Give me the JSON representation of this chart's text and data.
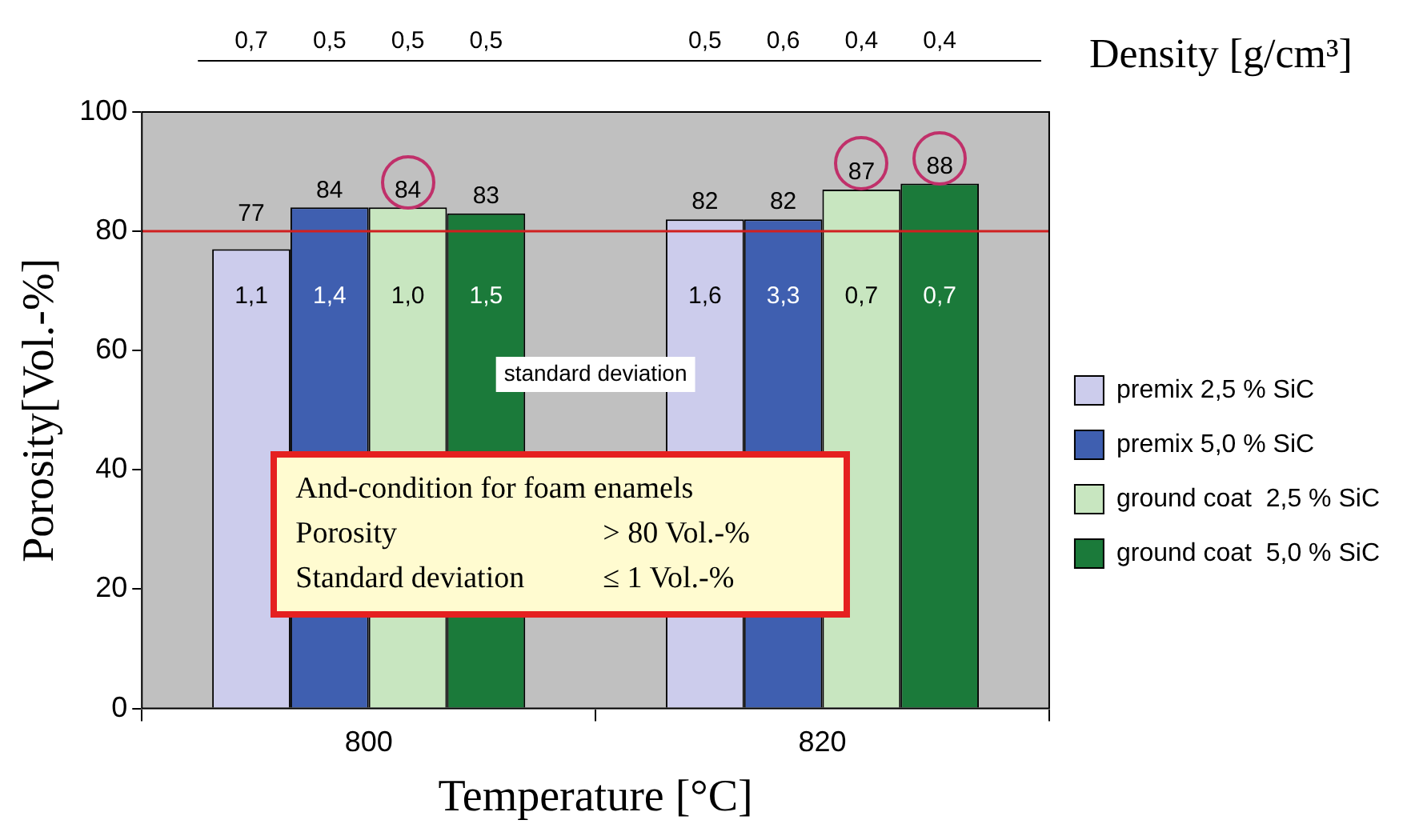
{
  "chart_data": {
    "type": "bar",
    "xlabel": "Temperature [°C]",
    "ylabel": "Porosity[Vol.-%]",
    "categories": [
      "800",
      "820"
    ],
    "series": [
      {
        "name": "premix 2,5 % SiC",
        "color": "#ccccec",
        "values": [
          77,
          82
        ]
      },
      {
        "name": "premix 5,0 % SiC",
        "color": "#3f5fb0",
        "values": [
          84,
          82
        ]
      },
      {
        "name": "ground coat  2,5 % SiC",
        "color": "#c8e6c0",
        "values": [
          84,
          87
        ]
      },
      {
        "name": "ground coat  5,0 % SiC",
        "color": "#1b7a3a",
        "values": [
          83,
          88
        ]
      }
    ],
    "ylim": [
      0,
      100
    ],
    "yticks": [
      0,
      20,
      40,
      60,
      80,
      100
    ],
    "grid": false,
    "legend": "right",
    "data_labels": true,
    "ref_lines": [
      {
        "axis": "y",
        "value": 80,
        "color": "#d02020"
      }
    ],
    "annotations": [
      "0,7",
      "0,5",
      "0,5",
      "0,5",
      "0,5",
      "0,6",
      "0,4",
      "0,4",
      "Density [g/cm³]",
      "1,1",
      "1,4",
      "1,0",
      "1,5",
      "1,6",
      "3,3",
      "0,7",
      "0,7",
      "standard deviation",
      "And-condition for foam enamels",
      "Porosity",
      "> 80 Vol.-%",
      "Standard deviation",
      "≤ 1 Vol.-%"
    ]
  }
}
